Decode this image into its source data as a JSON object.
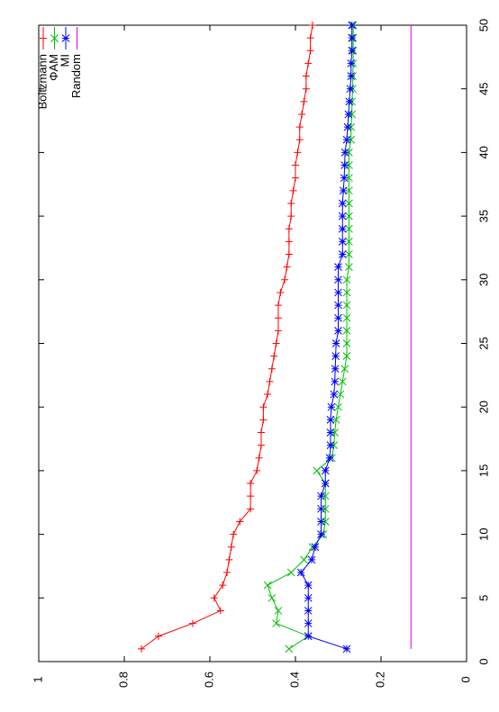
{
  "chart_data": {
    "type": "line",
    "x": [
      1,
      2,
      3,
      4,
      5,
      6,
      7,
      8,
      9,
      10,
      11,
      12,
      13,
      14,
      15,
      16,
      17,
      18,
      19,
      20,
      21,
      22,
      23,
      24,
      25,
      26,
      27,
      28,
      29,
      30,
      31,
      32,
      33,
      34,
      35,
      36,
      37,
      38,
      39,
      40,
      41,
      42,
      43,
      44,
      45,
      46,
      47,
      48,
      49,
      50
    ],
    "series": [
      {
        "name": "Boltzmann",
        "color": "#ff0000",
        "marker": "plus",
        "values": [
          0.76,
          0.72,
          0.64,
          0.575,
          0.59,
          0.57,
          0.56,
          0.555,
          0.55,
          0.545,
          0.53,
          0.505,
          0.505,
          0.505,
          0.49,
          0.485,
          0.48,
          0.48,
          0.475,
          0.475,
          0.465,
          0.46,
          0.455,
          0.45,
          0.445,
          0.44,
          0.44,
          0.44,
          0.435,
          0.425,
          0.42,
          0.415,
          0.415,
          0.415,
          0.41,
          0.41,
          0.405,
          0.4,
          0.4,
          0.395,
          0.39,
          0.39,
          0.385,
          0.38,
          0.375,
          0.375,
          0.37,
          0.365,
          0.365,
          0.36
        ]
      },
      {
        "name": "ΦAM",
        "color": "#00c000",
        "marker": "cross",
        "values": [
          0.415,
          0.37,
          0.445,
          0.44,
          0.455,
          0.465,
          0.41,
          0.38,
          0.36,
          0.335,
          0.33,
          0.33,
          0.33,
          0.33,
          0.35,
          0.315,
          0.31,
          0.308,
          0.305,
          0.3,
          0.295,
          0.29,
          0.285,
          0.28,
          0.28,
          0.28,
          0.28,
          0.28,
          0.28,
          0.28,
          0.275,
          0.275,
          0.275,
          0.275,
          0.275,
          0.275,
          0.275,
          0.275,
          0.275,
          0.275,
          0.27,
          0.27,
          0.268,
          0.268,
          0.266,
          0.266,
          0.265,
          0.265,
          0.265,
          0.265
        ]
      },
      {
        "name": "MI",
        "color": "#0000ff",
        "marker": "star",
        "values": [
          0.28,
          0.37,
          0.37,
          0.37,
          0.37,
          0.37,
          0.387,
          0.362,
          0.354,
          0.34,
          0.34,
          0.34,
          0.34,
          0.33,
          0.33,
          0.32,
          0.318,
          0.318,
          0.318,
          0.316,
          0.31,
          0.308,
          0.307,
          0.306,
          0.305,
          0.3,
          0.3,
          0.3,
          0.3,
          0.3,
          0.3,
          0.29,
          0.29,
          0.29,
          0.29,
          0.29,
          0.288,
          0.286,
          0.285,
          0.284,
          0.28,
          0.278,
          0.276,
          0.274,
          0.272,
          0.27,
          0.27,
          0.268,
          0.268,
          0.268
        ]
      },
      {
        "name": "Random",
        "color": "#e000e0",
        "marker": "none",
        "values": [
          0.13,
          0.13,
          0.13,
          0.13,
          0.13,
          0.13,
          0.13,
          0.13,
          0.13,
          0.13,
          0.13,
          0.13,
          0.13,
          0.13,
          0.13,
          0.13,
          0.13,
          0.13,
          0.13,
          0.13,
          0.13,
          0.13,
          0.13,
          0.13,
          0.13,
          0.13,
          0.13,
          0.13,
          0.13,
          0.13,
          0.13,
          0.13,
          0.13,
          0.13,
          0.13,
          0.13,
          0.13,
          0.13,
          0.13,
          0.13,
          0.13,
          0.13,
          0.13,
          0.13,
          0.13,
          0.13,
          0.13,
          0.13,
          0.13,
          0.13
        ]
      }
    ],
    "xlim": [
      0,
      50
    ],
    "xticks": [
      0,
      5,
      10,
      15,
      20,
      25,
      30,
      35,
      40,
      45,
      50
    ],
    "ylim": [
      0,
      1
    ],
    "yticks": [
      0,
      0.2,
      0.4,
      0.6,
      0.8,
      1
    ],
    "legend": "top-left"
  }
}
